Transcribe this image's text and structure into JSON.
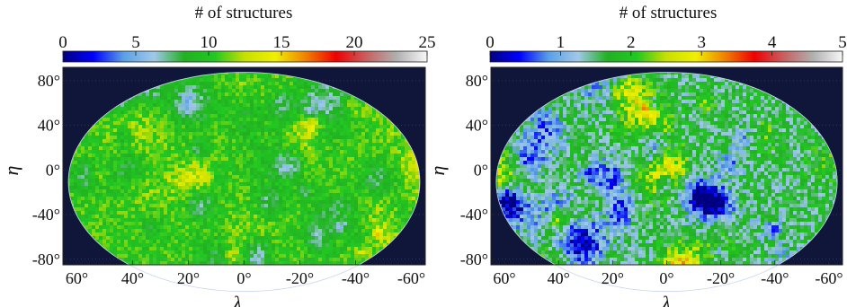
{
  "chart_data": [
    {
      "type": "heatmap",
      "title": "# of structures",
      "colorbar": {
        "min": 0,
        "max": 25,
        "ticks": [
          "0",
          "5",
          "10",
          "15",
          "20",
          "25"
        ]
      },
      "xlabel": "λ",
      "ylabel": "η",
      "xticks": [
        "60°",
        "40°",
        "20°",
        "0°",
        "-20°",
        "-40°",
        "-60°"
      ],
      "yticks": [
        "80°",
        "40°",
        "0°",
        "-40°",
        "-80°"
      ],
      "xlim": [
        65,
        -65
      ],
      "ylim": [
        -85,
        92
      ],
      "field": {
        "mean": 10.5,
        "spread": 3.2,
        "seed": 17
      }
    },
    {
      "type": "heatmap",
      "title": "# of structures",
      "colorbar": {
        "min": 0,
        "max": 5,
        "ticks": [
          "0",
          "1",
          "2",
          "3",
          "4",
          "5"
        ]
      },
      "xlabel": "λ",
      "ylabel": "η",
      "xticks": [
        "60°",
        "40°",
        "20°",
        "0°",
        "-20°",
        "-40°",
        "-60°"
      ],
      "yticks": [
        "80°",
        "40°",
        "0°",
        "-40°",
        "-80°"
      ],
      "xlim": [
        65,
        -65
      ],
      "ylim": [
        -85,
        92
      ],
      "field": {
        "mean": 1.6,
        "spread": 1.1,
        "seed": 91
      }
    }
  ],
  "colors": {
    "plot_background": "#10163a",
    "colormap": [
      "#000080",
      "#0000ff",
      "#5aa0e6",
      "#a0c8e8",
      "#22b022",
      "#22c822",
      "#c8e000",
      "#f0f000",
      "#f08000",
      "#f00000",
      "#c86060",
      "#b0b0b0",
      "#f8f8f8"
    ]
  }
}
